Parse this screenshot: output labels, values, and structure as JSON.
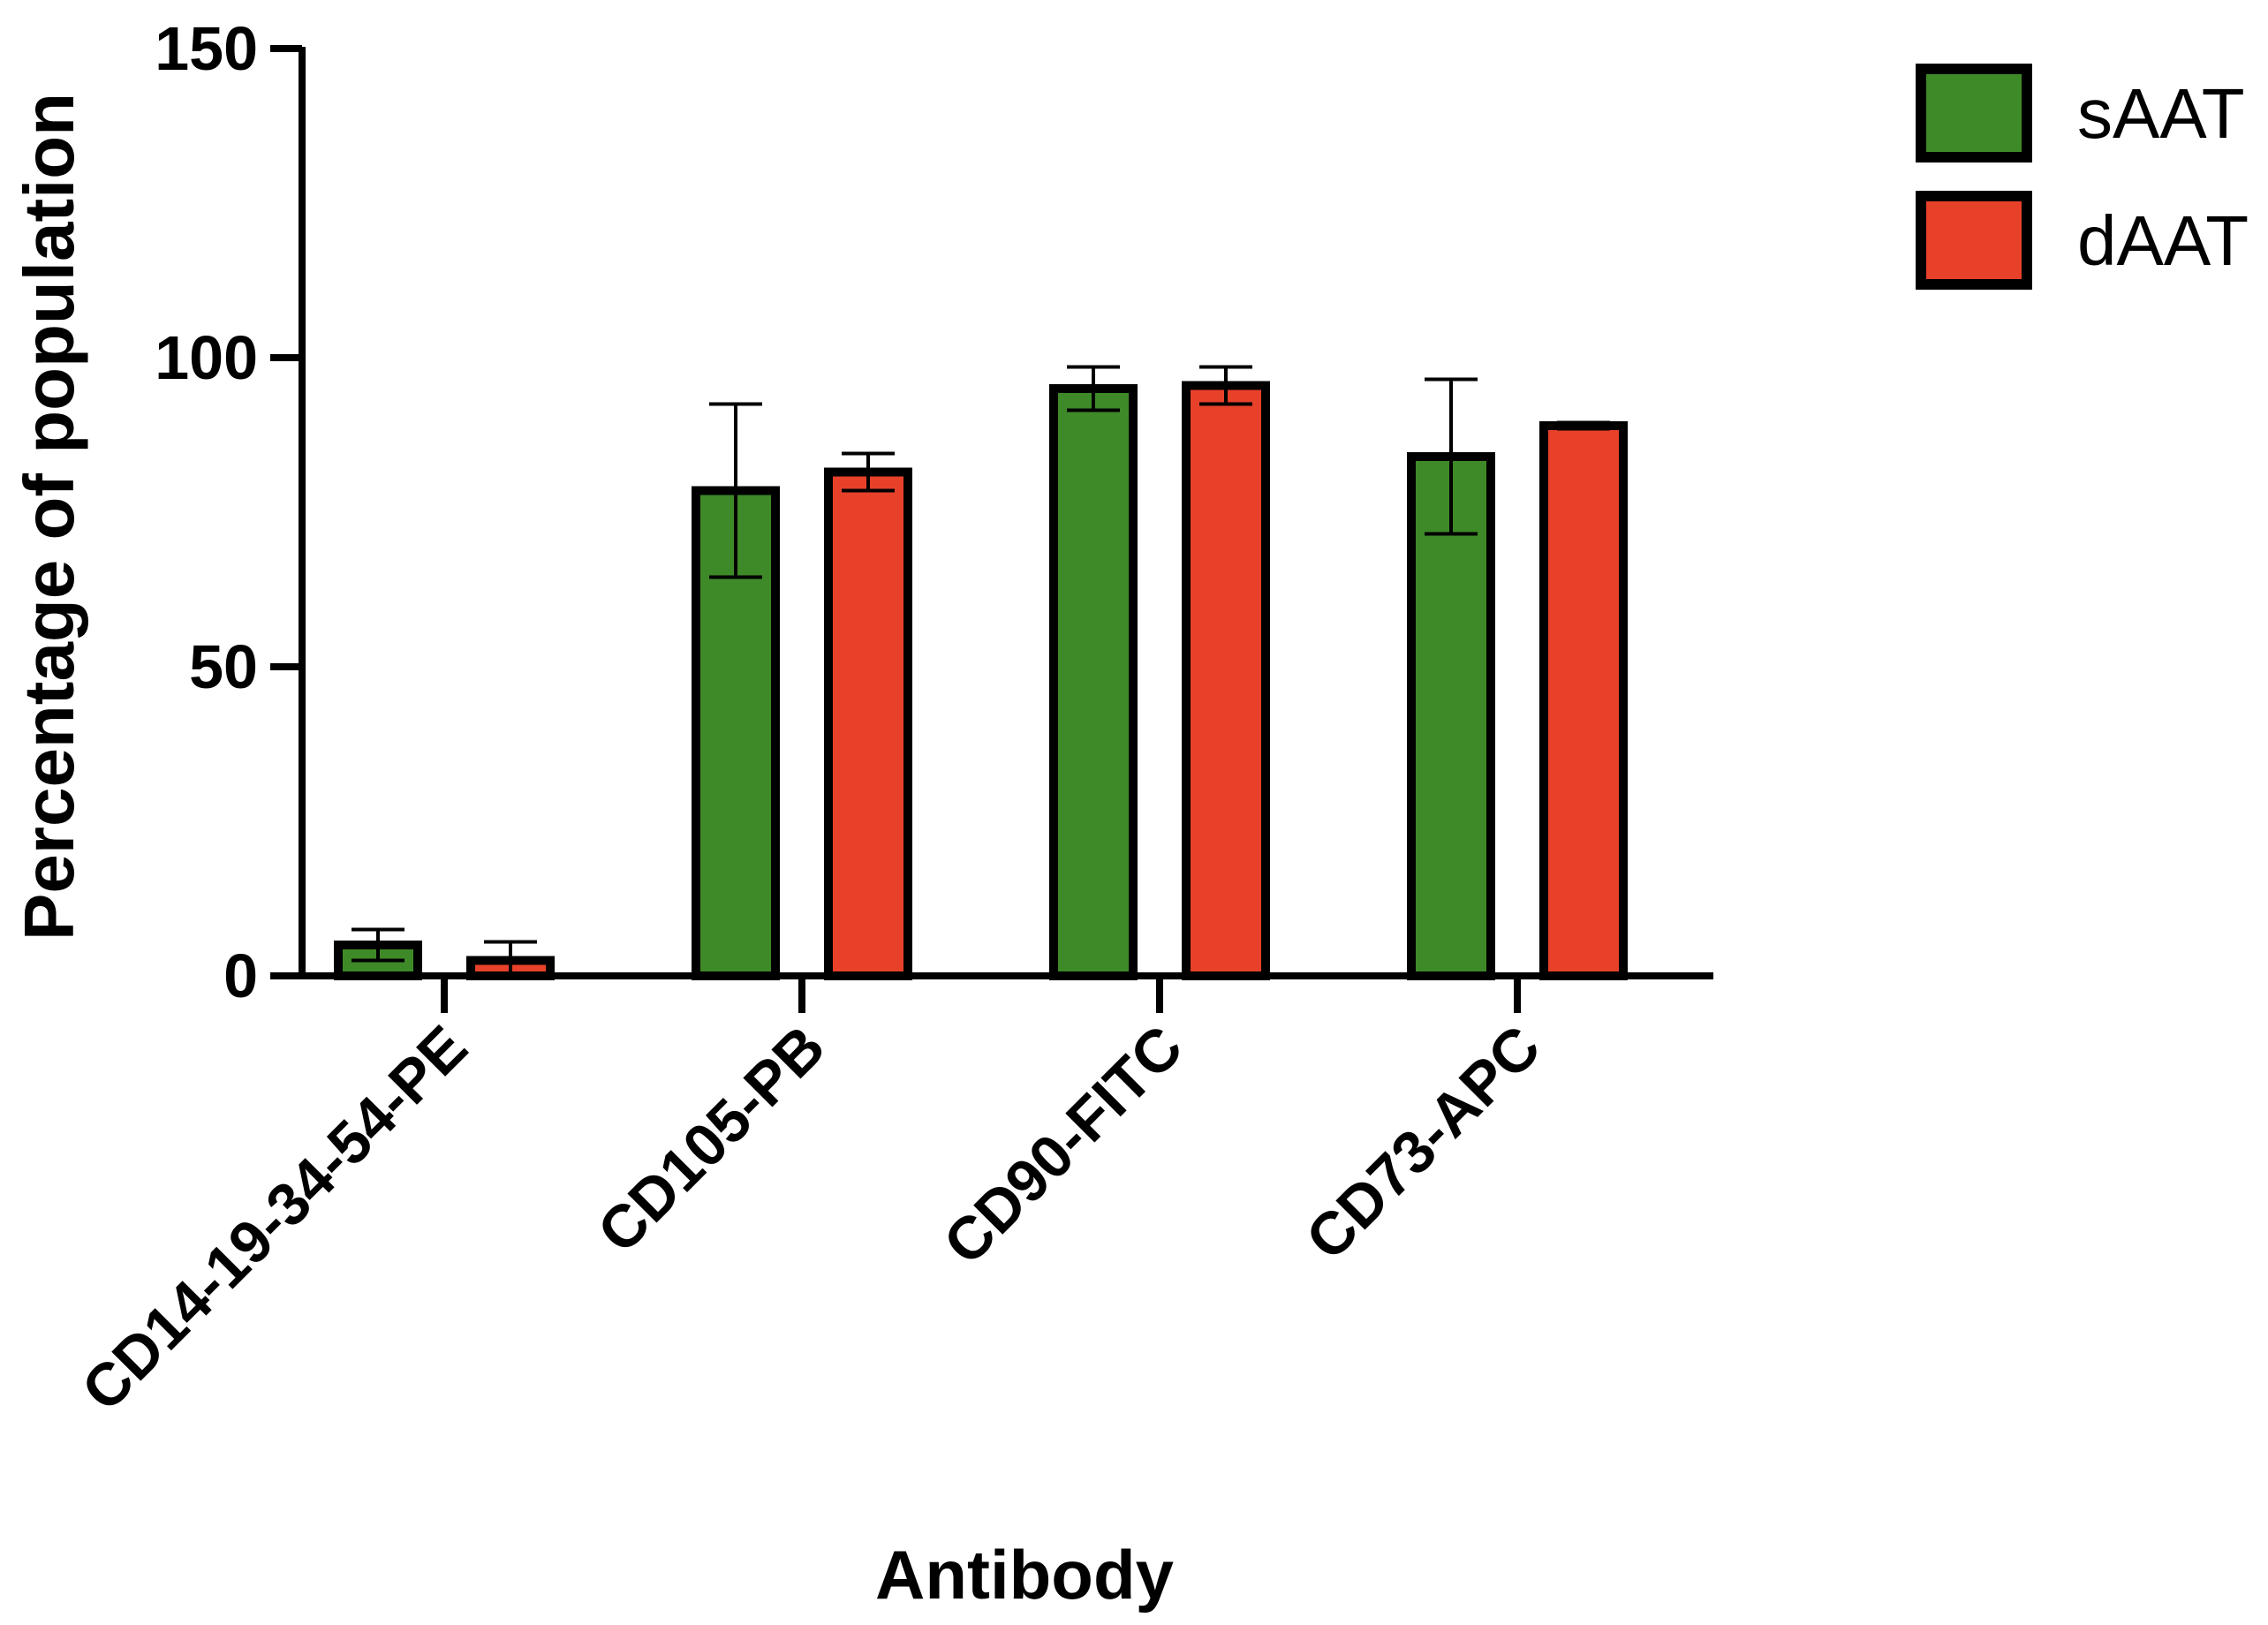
{
  "chart_data": {
    "type": "bar",
    "xlabel": "Antibody",
    "ylabel": "Percentage of population",
    "ylim": [
      0,
      150
    ],
    "yticks": [
      "0",
      "50",
      "100",
      "150"
    ],
    "categories": [
      "CD14-19-34-54-PE",
      "CD105-PB",
      "CD90-FITC",
      "CD73-APC"
    ],
    "series": [
      {
        "name": "sAAT",
        "color": "#3e8a28",
        "values": [
          5,
          78.5,
          95,
          84
        ],
        "errors": [
          2.5,
          14,
          3.5,
          12.5
        ]
      },
      {
        "name": "dAAT",
        "color": "#e8412a",
        "values": [
          2.5,
          81.5,
          95.5,
          89
        ],
        "errors": [
          3,
          3,
          3,
          0.5
        ]
      }
    ],
    "legend_position": "top-right",
    "grid": false
  }
}
